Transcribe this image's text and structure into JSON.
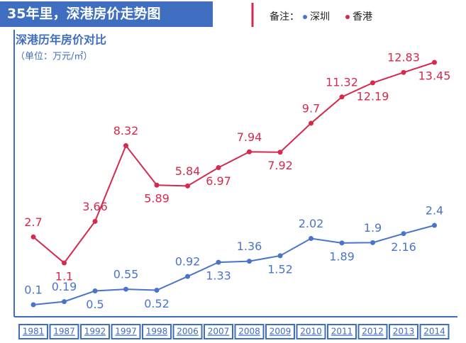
{
  "chart_data": {
    "type": "line",
    "title": "35年里，深港房价走势图",
    "legend_title": "备注：",
    "subtitle": "深港历年房价对比",
    "unit": "（单位：万元/㎡）",
    "categories": [
      "1981",
      "1987",
      "1992",
      "1997",
      "1998",
      "2006",
      "2007",
      "2008",
      "2009",
      "2010",
      "2011",
      "2012",
      "2013",
      "2014"
    ],
    "series": [
      {
        "name": "深圳",
        "color": "#4a74c9",
        "values": [
          0.1,
          0.19,
          0.5,
          0.55,
          0.52,
          0.92,
          1.33,
          1.36,
          1.52,
          2.02,
          1.89,
          1.9,
          2.16,
          2.4
        ]
      },
      {
        "name": "香港",
        "color": "#d5294d",
        "values": [
          2.7,
          1.1,
          3.66,
          8.32,
          5.89,
          5.84,
          6.97,
          7.94,
          7.92,
          9.7,
          11.32,
          12.19,
          12.83,
          13.45
        ]
      }
    ]
  }
}
